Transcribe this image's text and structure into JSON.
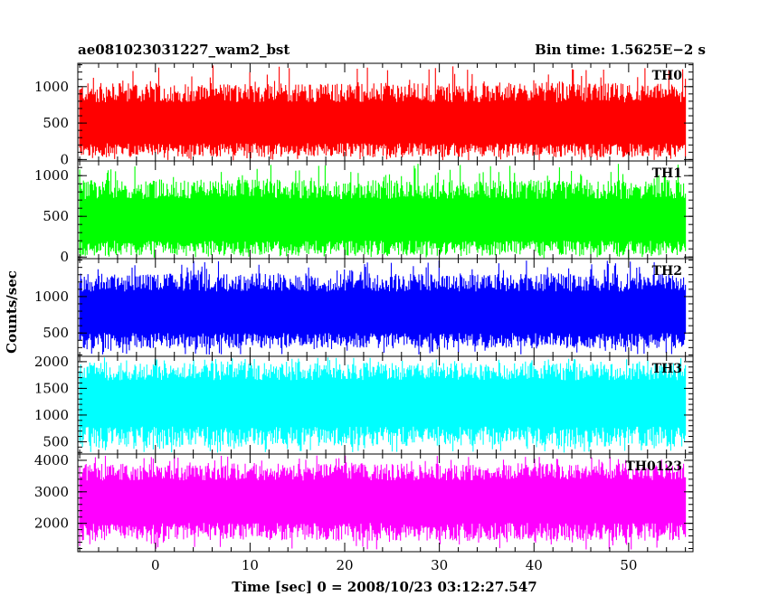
{
  "chart_data": {
    "type": "line",
    "title": "ae081023031227_wam2_bst",
    "subtitle": "Bin time: 1.5625E−2 s",
    "xlabel": "Time [sec] 0 = 2008/10/23 03:12:27.547",
    "ylabel": "Counts/sec",
    "xlim": [
      -8.2,
      56.8
    ],
    "x_ticks": [
      0,
      10,
      20,
      30,
      40,
      50
    ],
    "x_data_range": [
      -8,
      56
    ],
    "grid": false,
    "panels": [
      {
        "name": "TH0",
        "color": "#ff0000",
        "ylim": [
          -20,
          1320
        ],
        "yticks": [
          0,
          500,
          1000
        ],
        "center": 460,
        "typical_min": 30,
        "typical_max": 1050,
        "spike_max": 1300
      },
      {
        "name": "TH1",
        "color": "#00ff00",
        "ylim": [
          -20,
          1180
        ],
        "yticks": [
          0,
          500,
          1000
        ],
        "center": 420,
        "typical_min": 20,
        "typical_max": 950,
        "spike_max": 1150
      },
      {
        "name": "TH2",
        "color": "#0000ff",
        "ylim": [
          180,
          1520
        ],
        "yticks": [
          500,
          1000
        ],
        "center": 760,
        "typical_min": 290,
        "typical_max": 1320,
        "spike_max": 1500
      },
      {
        "name": "TH3",
        "color": "#00ffff",
        "ylim": [
          270,
          2100
        ],
        "yticks": [
          500,
          1000,
          1500,
          2000
        ],
        "center": 1250,
        "typical_min": 400,
        "typical_max": 1980,
        "spike_max": 2080
      },
      {
        "name": "TH0123",
        "color": "#ff00ff",
        "ylim": [
          1100,
          4200
        ],
        "yticks": [
          2000,
          3000,
          4000
        ],
        "center": 2700,
        "typical_min": 1450,
        "typical_max": 3900,
        "spike_max": 4150
      }
    ]
  }
}
